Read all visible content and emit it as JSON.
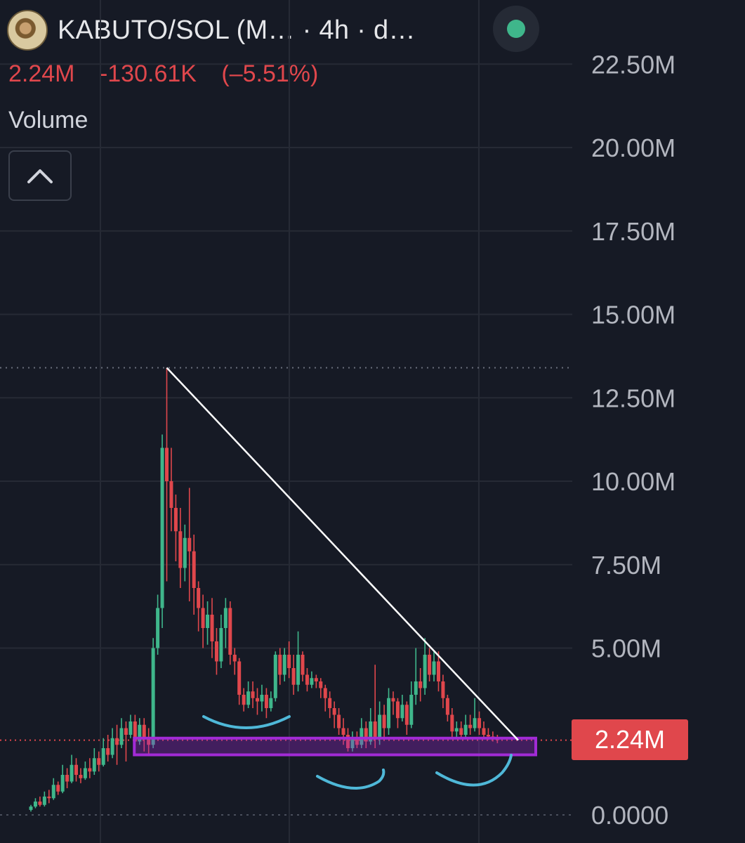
{
  "header": {
    "title": "KABUTO/SOL (M…  · 4h · d…",
    "logo_icon": "kabuto-token-logo",
    "status_icon": "green-dot-icon",
    "status_color": "#3fb68b"
  },
  "price_line": {
    "last": "2.24M",
    "change": "-130.61K",
    "change_pct": "(–5.51%)"
  },
  "volume": {
    "label": "Volume",
    "toggle_icon": "chevron-up-icon"
  },
  "current_price": {
    "label": "2.24M",
    "value": 2.24,
    "color": "#e0474c"
  },
  "colors": {
    "up": "#3fb68b",
    "down": "#e0474c",
    "background": "#161a25"
  },
  "chart_data": {
    "type": "candlestick",
    "timeframe": "4h",
    "y_unit": "M",
    "ylim": [
      0,
      22.5
    ],
    "y_ticks": [
      {
        "value": 22.5,
        "label": "22.50M"
      },
      {
        "value": 20.0,
        "label": "20.00M"
      },
      {
        "value": 17.5,
        "label": "17.50M"
      },
      {
        "value": 15.0,
        "label": "15.00M"
      },
      {
        "value": 12.5,
        "label": "12.50M"
      },
      {
        "value": 10.0,
        "label": "10.00M"
      },
      {
        "value": 7.5,
        "label": "7.50M"
      },
      {
        "value": 5.0,
        "label": "5.00M"
      },
      {
        "value": 0.0,
        "label": "0.0000"
      }
    ],
    "high_marker": 13.4,
    "candles": [
      [
        0.15,
        0.25,
        0.1,
        0.3
      ],
      [
        0.25,
        0.4,
        0.2,
        0.5
      ],
      [
        0.4,
        0.3,
        0.25,
        0.55
      ],
      [
        0.3,
        0.55,
        0.25,
        0.7
      ],
      [
        0.55,
        0.5,
        0.35,
        0.75
      ],
      [
        0.5,
        0.9,
        0.45,
        1.1
      ],
      [
        0.9,
        0.7,
        0.6,
        1.0
      ],
      [
        0.7,
        1.2,
        0.65,
        1.5
      ],
      [
        1.2,
        1.0,
        0.8,
        1.4
      ],
      [
        1.0,
        1.5,
        0.95,
        1.8
      ],
      [
        1.5,
        1.2,
        1.0,
        1.7
      ],
      [
        1.2,
        1.1,
        0.95,
        1.4
      ],
      [
        1.1,
        1.4,
        1.05,
        1.6
      ],
      [
        1.4,
        1.3,
        1.1,
        1.7
      ],
      [
        1.3,
        1.7,
        1.2,
        2.0
      ],
      [
        1.7,
        1.5,
        1.3,
        1.9
      ],
      [
        1.5,
        2.0,
        1.45,
        2.3
      ],
      [
        2.0,
        1.8,
        1.6,
        2.4
      ],
      [
        1.8,
        2.3,
        1.7,
        2.6
      ],
      [
        2.3,
        2.1,
        1.5,
        2.7
      ],
      [
        2.1,
        2.6,
        2.0,
        2.9
      ],
      [
        2.6,
        2.4,
        1.6,
        2.8
      ],
      [
        2.4,
        2.8,
        2.3,
        3.0
      ],
      [
        2.8,
        2.2,
        2.0,
        3.0
      ],
      [
        2.2,
        2.7,
        2.1,
        2.9
      ],
      [
        2.7,
        2.3,
        1.9,
        2.9
      ],
      [
        2.3,
        2.1,
        1.8,
        2.6
      ],
      [
        2.1,
        5.0,
        2.0,
        5.3
      ],
      [
        5.0,
        6.2,
        4.8,
        6.6
      ],
      [
        6.2,
        11.0,
        5.6,
        11.4
      ],
      [
        11.0,
        10.0,
        7.0,
        13.4
      ],
      [
        10.0,
        9.2,
        8.5,
        11.0
      ],
      [
        9.2,
        8.5,
        7.6,
        9.6
      ],
      [
        8.5,
        7.4,
        6.8,
        9.2
      ],
      [
        7.4,
        8.3,
        7.0,
        8.7
      ],
      [
        8.3,
        7.9,
        6.4,
        9.8
      ],
      [
        7.9,
        6.8,
        6.0,
        8.4
      ],
      [
        6.8,
        6.2,
        5.5,
        7.0
      ],
      [
        6.2,
        5.6,
        5.0,
        6.6
      ],
      [
        5.6,
        6.0,
        5.1,
        6.4
      ],
      [
        6.0,
        5.2,
        4.7,
        6.5
      ],
      [
        5.2,
        4.6,
        4.2,
        5.6
      ],
      [
        4.6,
        5.6,
        4.4,
        6.0
      ],
      [
        5.6,
        6.2,
        5.0,
        6.5
      ],
      [
        6.2,
        4.8,
        4.5,
        6.4
      ],
      [
        4.8,
        4.6,
        4.2,
        5.0
      ],
      [
        4.6,
        3.6,
        3.3,
        4.7
      ],
      [
        3.6,
        3.3,
        3.1,
        3.8
      ],
      [
        3.3,
        3.7,
        3.2,
        4.0
      ],
      [
        3.7,
        3.5,
        3.2,
        4.0
      ],
      [
        3.5,
        3.4,
        3.0,
        3.8
      ],
      [
        3.4,
        3.6,
        3.1,
        3.9
      ],
      [
        3.6,
        3.2,
        2.9,
        3.8
      ],
      [
        3.2,
        3.5,
        3.1,
        3.7
      ],
      [
        3.5,
        4.8,
        3.4,
        4.9
      ],
      [
        4.8,
        4.2,
        3.9,
        5.0
      ],
      [
        4.2,
        4.8,
        4.0,
        5.0
      ],
      [
        4.8,
        4.4,
        4.1,
        5.2
      ],
      [
        4.4,
        3.9,
        3.6,
        4.8
      ],
      [
        3.9,
        4.8,
        3.7,
        5.5
      ],
      [
        4.8,
        4.2,
        4.0,
        4.9
      ],
      [
        4.2,
        3.9,
        3.7,
        4.4
      ],
      [
        3.9,
        4.1,
        3.8,
        4.3
      ],
      [
        4.1,
        4.0,
        3.8,
        4.2
      ],
      [
        4.0,
        3.8,
        3.5,
        4.1
      ],
      [
        3.8,
        3.5,
        3.1,
        3.9
      ],
      [
        3.5,
        3.2,
        2.9,
        3.7
      ],
      [
        3.2,
        3.0,
        2.6,
        3.4
      ],
      [
        3.0,
        2.6,
        2.4,
        3.2
      ],
      [
        2.6,
        2.4,
        2.1,
        2.9
      ],
      [
        2.4,
        2.0,
        1.9,
        2.6
      ],
      [
        2.0,
        2.3,
        1.9,
        2.5
      ],
      [
        2.3,
        2.1,
        2.0,
        2.5
      ],
      [
        2.1,
        2.6,
        2.0,
        2.9
      ],
      [
        2.6,
        2.2,
        2.0,
        2.8
      ],
      [
        2.2,
        2.8,
        2.1,
        3.2
      ],
      [
        2.8,
        2.3,
        2.0,
        4.5
      ],
      [
        2.3,
        3.0,
        2.1,
        3.4
      ],
      [
        3.0,
        2.6,
        2.3,
        3.3
      ],
      [
        2.6,
        3.5,
        2.4,
        3.8
      ],
      [
        3.5,
        3.4,
        3.0,
        3.7
      ],
      [
        3.4,
        2.9,
        2.6,
        3.5
      ],
      [
        2.9,
        3.3,
        2.8,
        3.6
      ],
      [
        3.3,
        2.7,
        2.4,
        3.4
      ],
      [
        2.7,
        3.6,
        2.6,
        4.0
      ],
      [
        3.6,
        4.0,
        3.3,
        5.0
      ],
      [
        4.0,
        3.8,
        3.4,
        4.4
      ],
      [
        3.8,
        4.8,
        3.6,
        5.3
      ],
      [
        4.8,
        4.2,
        4.0,
        5.0
      ],
      [
        4.2,
        4.6,
        4.0,
        4.9
      ],
      [
        4.6,
        4.0,
        3.7,
        4.9
      ],
      [
        4.0,
        3.5,
        3.2,
        4.2
      ],
      [
        3.5,
        3.0,
        2.8,
        3.6
      ],
      [
        3.0,
        2.5,
        2.3,
        3.2
      ],
      [
        2.5,
        2.6,
        2.3,
        2.8
      ],
      [
        2.6,
        2.4,
        2.3,
        2.8
      ],
      [
        2.4,
        2.7,
        2.3,
        3.0
      ],
      [
        2.7,
        2.6,
        2.4,
        3.0
      ],
      [
        2.6,
        2.9,
        2.5,
        3.5
      ],
      [
        2.9,
        2.6,
        2.4,
        3.1
      ],
      [
        2.6,
        2.4,
        2.3,
        2.8
      ],
      [
        2.4,
        2.35,
        2.25,
        2.6
      ],
      [
        2.35,
        2.3,
        2.2,
        2.5
      ],
      [
        2.3,
        2.24,
        2.15,
        2.4
      ]
    ],
    "annotations": [
      {
        "type": "trendline",
        "from": {
          "index": 30,
          "price": 13.4
        },
        "to": {
          "index": 103,
          "price": 2.24
        }
      },
      {
        "type": "support-zone",
        "from_index": 25,
        "to_index": 103,
        "low": 1.8,
        "high": 2.3
      }
    ]
  }
}
